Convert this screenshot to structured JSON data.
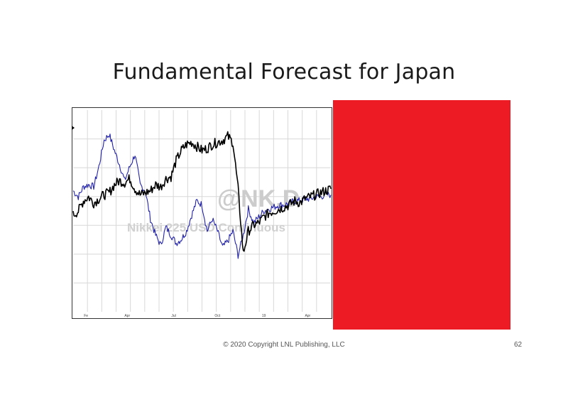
{
  "slide": {
    "title": "Fundamental Forecast for Japan",
    "copyright": "© 2020 Copyright LNL Publishing, LLC",
    "page_number": "62"
  },
  "colors": {
    "background": "#ffffff",
    "red_block": "#ed1c24",
    "series_black": "#000000",
    "series_blue": "#2222aa",
    "grid": "#d8d8d8",
    "watermark": "#c8c8c8"
  },
  "chart_data": {
    "type": "line",
    "title": "",
    "xlabel": "",
    "ylabel": "",
    "watermark_main": "@NK,D",
    "watermark_sub": "Nikkei 225 USD Continuous",
    "x_tick_labels": [
      "Fe",
      "Apr",
      "Jul",
      "Oct",
      "19",
      "Apr"
    ],
    "grid": true,
    "ylim": [
      0,
      100
    ],
    "x": [
      0,
      2,
      4,
      6,
      8,
      10,
      12,
      14,
      16,
      18,
      20,
      22,
      24,
      26,
      28,
      30,
      32,
      34,
      36,
      38,
      40,
      42,
      44,
      46,
      48,
      50,
      52,
      54,
      56,
      58,
      60,
      62,
      64,
      66,
      68,
      70,
      72,
      74,
      76,
      78,
      80,
      82,
      84,
      86,
      88,
      90,
      92,
      94,
      96,
      98,
      100
    ],
    "series": [
      {
        "values": [
          48,
          50,
          55,
          57,
          54,
          56,
          58,
          59,
          63,
          65,
          64,
          66,
          61,
          58,
          59,
          60,
          63,
          62,
          66,
          67,
          75,
          80,
          83,
          84,
          82,
          80,
          81,
          83,
          84,
          85,
          87,
          84,
          61,
          29,
          40,
          43,
          44,
          47,
          49,
          50,
          51,
          52,
          53,
          55,
          54,
          56,
          57,
          58,
          59,
          60,
          61
        ]
      },
      {
        "values": [
          60,
          57,
          62,
          63,
          62,
          72,
          85,
          88,
          80,
          73,
          65,
          72,
          78,
          63,
          60,
          46,
          38,
          33,
          42,
          38,
          34,
          36,
          40,
          48,
          55,
          53,
          40,
          46,
          40,
          32,
          35,
          40,
          28,
          38,
          51,
          44,
          47,
          50,
          51,
          52,
          53,
          53,
          54,
          55,
          55,
          56,
          56,
          57,
          57,
          58,
          58
        ]
      }
    ]
  }
}
